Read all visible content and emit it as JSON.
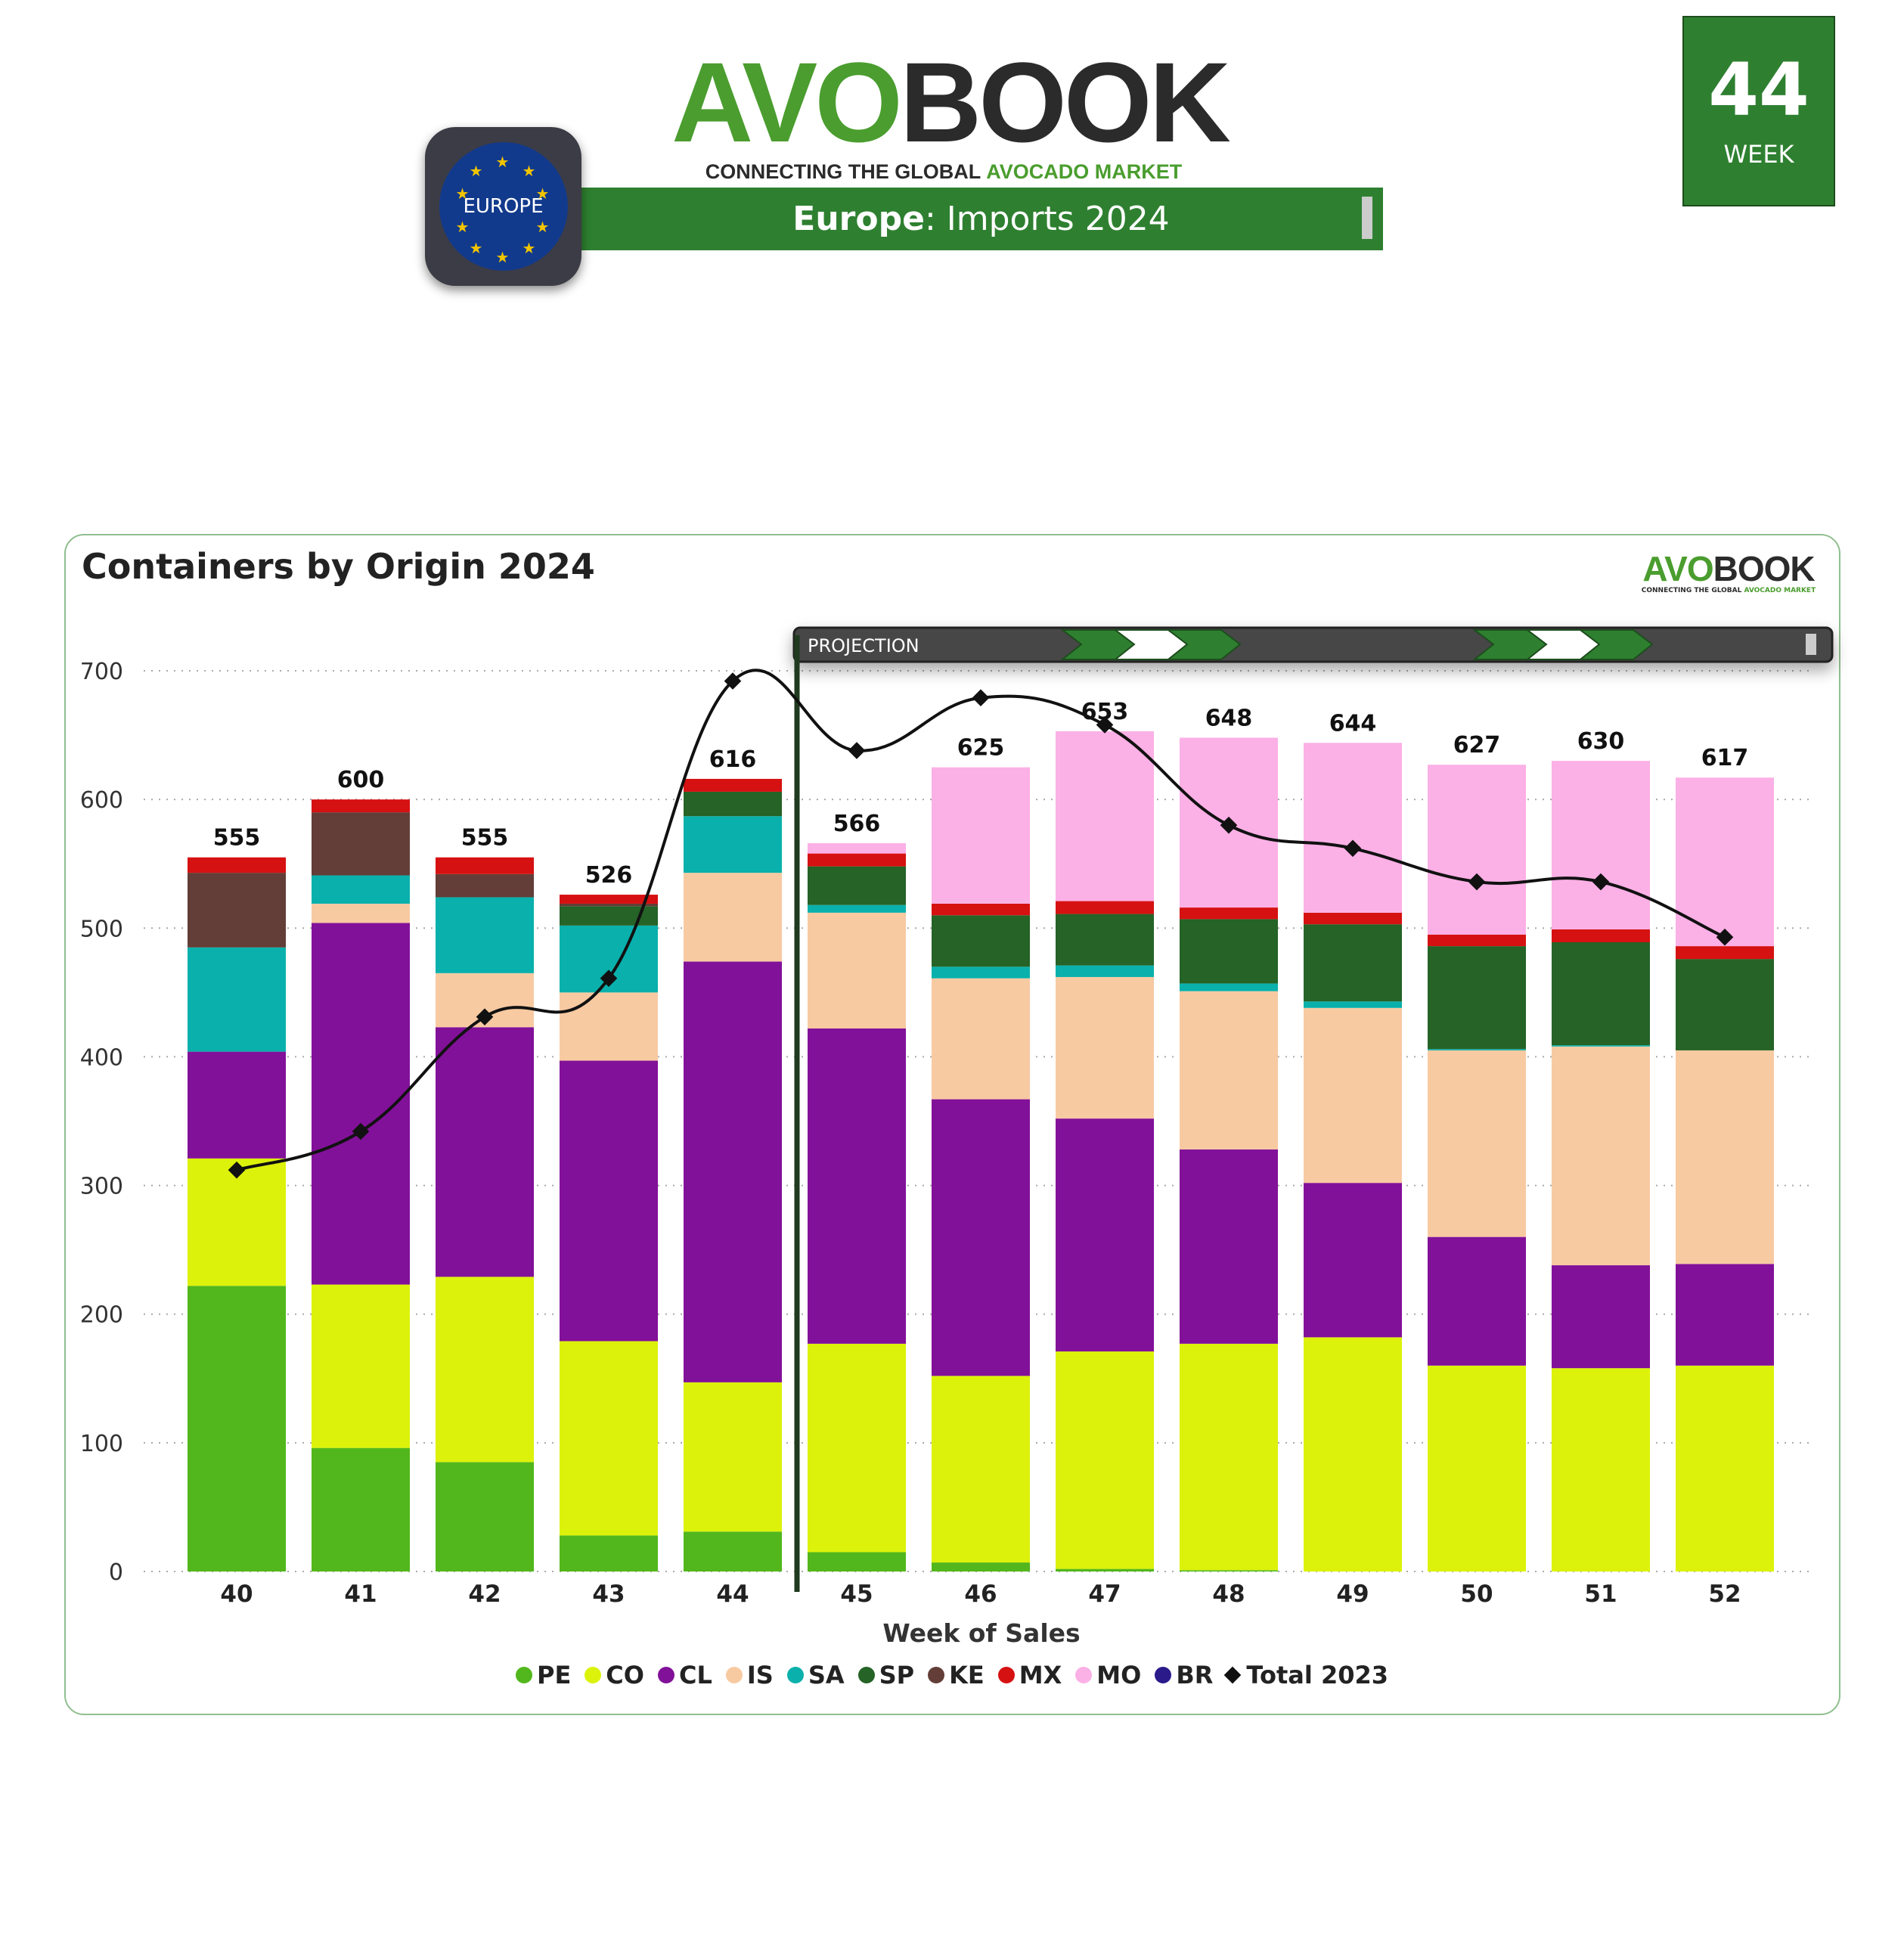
{
  "header": {
    "logo_brand_a": "AVO",
    "logo_brand_b": "BOOK",
    "logo_tagline_a": "CONNECTING THE GLOBAL ",
    "logo_tagline_b": "AVOCADO MARKET",
    "region_badge": "EUROPE",
    "banner_region": "Europe",
    "banner_rest": ": Imports 2024",
    "week_number": "44",
    "week_label": "WEEK"
  },
  "colors": {
    "accent": "#2e8030",
    "PE": "#52b71c",
    "CO": "#dcf20a",
    "CL": "#821199",
    "IS": "#f8caa2",
    "SA": "#0ab0ac",
    "SP": "#256326",
    "KE": "#633d37",
    "MX": "#d61111",
    "MO": "#fbb0e6",
    "BR": "#2a1a8a",
    "Total 2023": "#111111"
  },
  "projection_label": "PROJECTION",
  "chart_data": {
    "type": "bar",
    "stacked": true,
    "title": "Containers by Origin 2024",
    "xlabel": "Week of Sales",
    "ylabel": "",
    "ylim": [
      0,
      700
    ],
    "yticks": [
      0,
      100,
      200,
      300,
      400,
      500,
      600,
      700
    ],
    "grid": true,
    "legend_position": "bottom",
    "projection_start_week": "45",
    "categories": [
      "40",
      "41",
      "42",
      "43",
      "44",
      "45",
      "46",
      "47",
      "48",
      "49",
      "50",
      "51",
      "52"
    ],
    "series": [
      {
        "name": "PE",
        "values": [
          222,
          96,
          85,
          28,
          31,
          15,
          7,
          2,
          1,
          0,
          0,
          0,
          0
        ]
      },
      {
        "name": "CO",
        "values": [
          99,
          127,
          144,
          151,
          116,
          162,
          145,
          169,
          176,
          182,
          160,
          158,
          160
        ]
      },
      {
        "name": "CL",
        "values": [
          83,
          281,
          194,
          218,
          327,
          245,
          215,
          181,
          151,
          120,
          100,
          80,
          79
        ]
      },
      {
        "name": "IS",
        "values": [
          0,
          15,
          42,
          53,
          69,
          90,
          94,
          110,
          123,
          136,
          145,
          170,
          166
        ]
      },
      {
        "name": "SA",
        "values": [
          81,
          22,
          59,
          52,
          44,
          6,
          9,
          9,
          6,
          5,
          1,
          1,
          0
        ]
      },
      {
        "name": "SP",
        "values": [
          0,
          0,
          0,
          15,
          19,
          30,
          40,
          40,
          50,
          60,
          80,
          80,
          71
        ]
      },
      {
        "name": "KE",
        "values": [
          58,
          49,
          18,
          2,
          0,
          0,
          0,
          0,
          0,
          0,
          0,
          0,
          0
        ]
      },
      {
        "name": "MX",
        "values": [
          12,
          10,
          13,
          7,
          10,
          10,
          9,
          10,
          9,
          9,
          9,
          10,
          10
        ]
      },
      {
        "name": "MO",
        "values": [
          0,
          0,
          0,
          0,
          0,
          8,
          106,
          132,
          132,
          132,
          132,
          131,
          131
        ]
      },
      {
        "name": "BR",
        "values": [
          0,
          0,
          0,
          0,
          0,
          0,
          0,
          0,
          0,
          0,
          0,
          0,
          0
        ]
      }
    ],
    "totals": [
      "555",
      "600",
      "555",
      "526",
      "616",
      "566",
      "625",
      "653",
      "648",
      "644",
      "627",
      "630",
      "617"
    ],
    "line_series": {
      "name": "Total 2023",
      "values": [
        312,
        342,
        431,
        461,
        692,
        638,
        679,
        658,
        580,
        562,
        536,
        536,
        493
      ]
    }
  },
  "legend": [
    "PE",
    "CO",
    "CL",
    "IS",
    "SA",
    "SP",
    "KE",
    "MX",
    "MO",
    "BR",
    "Total 2023"
  ]
}
